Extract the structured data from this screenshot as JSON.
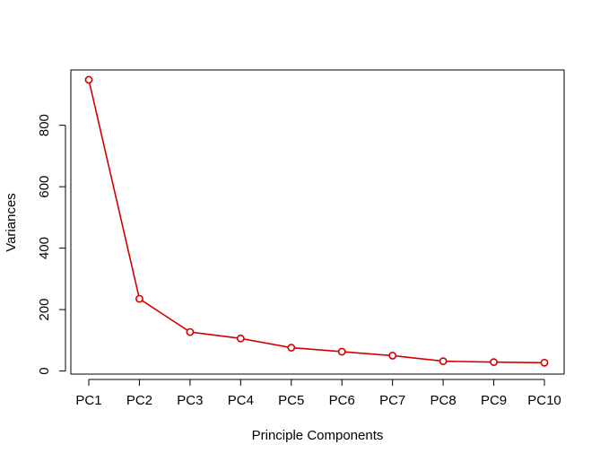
{
  "chart_data": {
    "type": "line",
    "categories": [
      "PC1",
      "PC2",
      "PC3",
      "PC4",
      "PC5",
      "PC6",
      "PC7",
      "PC8",
      "PC9",
      "PC10"
    ],
    "series": [
      {
        "values": [
          948,
          235,
          127,
          106,
          76,
          63,
          50,
          32,
          29,
          27
        ],
        "color": "#d40000",
        "marker": "open-circle"
      }
    ],
    "xlabel": "Principle Components",
    "ylabel": "Variances",
    "yticks": [
      0,
      200,
      400,
      600,
      800
    ],
    "ylim": [
      -10,
      980
    ],
    "grid": false,
    "legend": "none"
  }
}
